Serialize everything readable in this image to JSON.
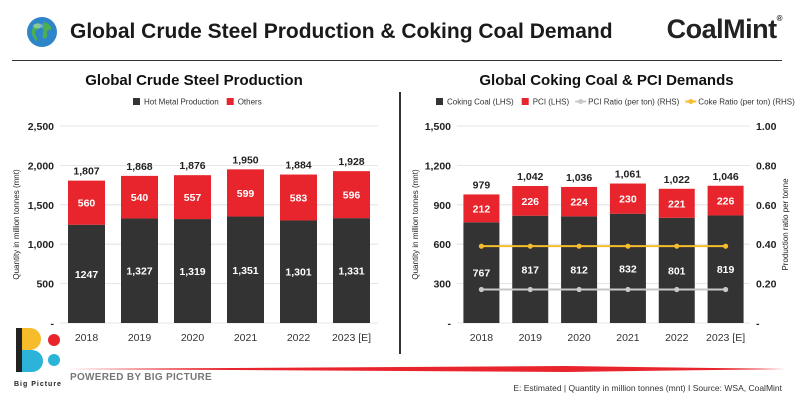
{
  "header": {
    "title": "Global Crude Steel Production & Coking Coal Demand",
    "brand": "CoalMint",
    "brand_mark": "®"
  },
  "footer": {
    "powered_by": "POWERED BY BIG PICTURE",
    "logo_caption": "Big Picture",
    "note": "E: Estimated | Quantity in million tonnes (mnt)  I  Source: WSA, CoalMint"
  },
  "colors": {
    "dark": "#333333",
    "red": "#e8242c",
    "grey_line": "#c8c8c8",
    "gold_line": "#f6bc2c",
    "brand_red": "#e8242c"
  },
  "chart_data": [
    {
      "type": "bar",
      "stacked": true,
      "title": "Global Crude Steel Production",
      "ylabel": "Quantity in million tonnes (mnt)",
      "ylim": [
        0,
        2500
      ],
      "yticks": [
        "-",
        "500",
        "1,000",
        "1,500",
        "2,000",
        "2,500"
      ],
      "legend_position": "top",
      "categories": [
        "2018",
        "2019",
        "2020",
        "2021",
        "2022",
        "2023 [E]"
      ],
      "series": [
        {
          "name": "Hot Metal Production",
          "values": [
            1247,
            1327,
            1319,
            1351,
            1301,
            1331
          ],
          "labels": [
            "1247",
            "1,327",
            "1,319",
            "1,351",
            "1,301",
            "1,331"
          ],
          "color": "#333333"
        },
        {
          "name": "Others",
          "values": [
            560,
            540,
            557,
            599,
            583,
            596
          ],
          "labels": [
            "560",
            "540",
            "557",
            "599",
            "583",
            "596"
          ],
          "color": "#e8242c"
        }
      ],
      "totals": [
        "1,807",
        "1,868",
        "1,876",
        "1,950",
        "1,884",
        "1,928"
      ]
    },
    {
      "type": "bar",
      "stacked": true,
      "title": "Global Coking Coal & PCI Demands",
      "ylabel": "Quantity in million tonnes (mnt)",
      "y2label": "Production ratio per tonne",
      "ylim": [
        0,
        1500
      ],
      "y2lim": [
        0,
        1.0
      ],
      "yticks": [
        "-",
        "300",
        "600",
        "900",
        "1,200",
        "1,500"
      ],
      "y2ticks": [
        "-",
        "0.20",
        "0.40",
        "0.60",
        "0.80",
        "1.00"
      ],
      "legend_position": "top",
      "categories": [
        "2018",
        "2019",
        "2020",
        "2021",
        "2022",
        "2023 [E]"
      ],
      "series": [
        {
          "name": "Coking Coal (LHS)",
          "values": [
            767,
            817,
            812,
            832,
            801,
            819
          ],
          "labels": [
            "767",
            "817",
            "812",
            "832",
            "801",
            "819"
          ],
          "color": "#333333"
        },
        {
          "name": "PCI (LHS)",
          "values": [
            212,
            226,
            224,
            230,
            221,
            226
          ],
          "labels": [
            "212",
            "226",
            "224",
            "230",
            "221",
            "226"
          ],
          "color": "#e8242c"
        }
      ],
      "lines": [
        {
          "name": "PCI Ratio (per ton) (RHS)",
          "values": [
            0.17,
            0.17,
            0.17,
            0.17,
            0.17,
            0.17
          ],
          "color": "#c8c8c8"
        },
        {
          "name": "Coke Ratio (per ton) (RHS)",
          "values": [
            0.39,
            0.39,
            0.39,
            0.39,
            0.39,
            0.39
          ],
          "color": "#f6bc2c"
        }
      ],
      "totals": [
        "979",
        "1,042",
        "1,036",
        "1,061",
        "1,022",
        "1,046"
      ]
    }
  ]
}
